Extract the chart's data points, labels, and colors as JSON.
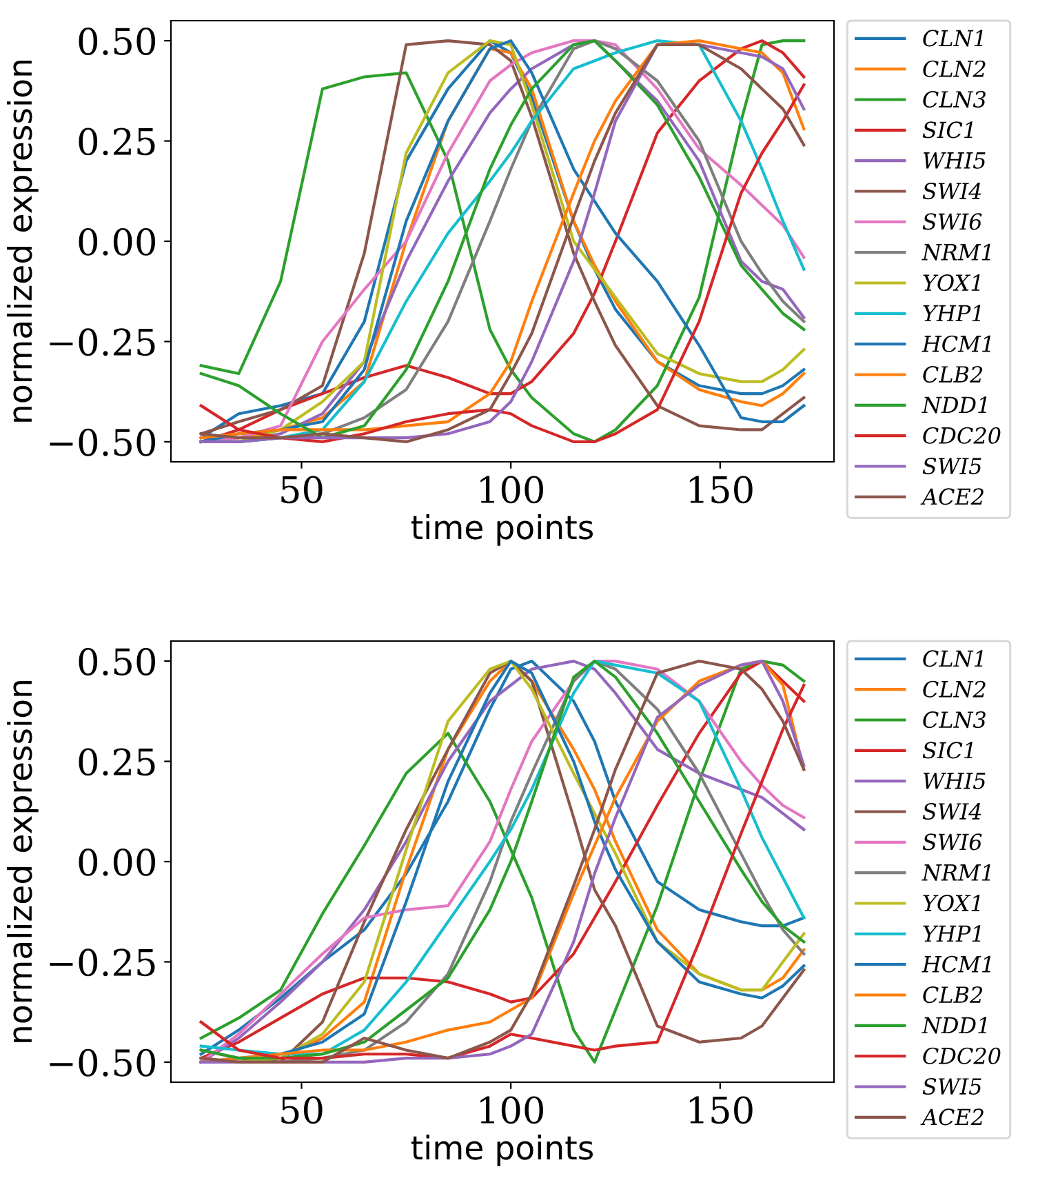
{
  "chart_data": [
    {
      "type": "line",
      "xlabel": "time points",
      "ylabel": "normalized expression",
      "legend": "right",
      "grid": false,
      "line_style": "solid",
      "xlim": [
        18.8,
        177.2
      ],
      "ylim": [
        -0.55,
        0.55
      ],
      "xticks": [
        50,
        100,
        150
      ],
      "yticks": [
        {
          "value": 0.5,
          "label": "0.50"
        },
        {
          "value": 0.25,
          "label": "0.25"
        },
        {
          "value": 0,
          "label": "0.00"
        },
        {
          "value": -0.25,
          "label": "−0.25"
        },
        {
          "value": -0.5,
          "label": "−0.50"
        }
      ],
      "x": [
        26,
        35,
        45,
        55,
        65,
        75,
        85,
        95,
        100,
        105,
        115,
        120,
        125,
        135,
        145,
        155,
        160,
        165,
        170
      ],
      "series": [
        {
          "name": "CLN1",
          "color": "#1f77b4",
          "values": [
            -0.49,
            -0.43,
            -0.41,
            -0.38,
            -0.2,
            0.2,
            0.38,
            0.5,
            0.47,
            0.36,
            0.05,
            -0.07,
            -0.17,
            -0.3,
            -0.36,
            -0.38,
            -0.38,
            -0.36,
            -0.32
          ]
        },
        {
          "name": "CLN2",
          "color": "#ff7f0e",
          "values": [
            -0.5,
            -0.49,
            -0.47,
            -0.44,
            -0.35,
            0.0,
            0.3,
            0.48,
            0.47,
            0.38,
            0.05,
            -0.06,
            -0.15,
            -0.3,
            -0.37,
            -0.4,
            -0.41,
            -0.38,
            -0.33
          ]
        },
        {
          "name": "CLN3",
          "color": "#2ca02c",
          "values": [
            -0.31,
            -0.33,
            -0.1,
            0.38,
            0.41,
            0.42,
            0.2,
            -0.22,
            -0.32,
            -0.39,
            -0.48,
            -0.5,
            -0.47,
            -0.36,
            -0.14,
            0.3,
            0.49,
            0.5,
            0.5
          ]
        },
        {
          "name": "SIC1",
          "color": "#d62728",
          "values": [
            -0.5,
            -0.47,
            -0.42,
            -0.38,
            -0.34,
            -0.31,
            -0.34,
            -0.38,
            -0.38,
            -0.35,
            -0.23,
            -0.13,
            0.0,
            0.27,
            0.4,
            0.48,
            0.5,
            0.47,
            0.41
          ]
        },
        {
          "name": "WHI5",
          "color": "#9467bd",
          "values": [
            -0.5,
            -0.5,
            -0.48,
            -0.43,
            -0.3,
            -0.05,
            0.15,
            0.32,
            0.38,
            0.43,
            0.49,
            0.5,
            0.45,
            0.35,
            0.2,
            -0.05,
            -0.1,
            -0.12,
            -0.19
          ]
        },
        {
          "name": "SWI4",
          "color": "#8c564b",
          "values": [
            -0.48,
            -0.45,
            -0.42,
            -0.36,
            -0.03,
            0.49,
            0.5,
            0.49,
            0.45,
            0.31,
            -0.03,
            -0.15,
            -0.26,
            -0.41,
            -0.46,
            -0.47,
            -0.47,
            -0.43,
            -0.39
          ]
        },
        {
          "name": "SWI6",
          "color": "#e377c2",
          "values": [
            -0.5,
            -0.49,
            -0.46,
            -0.25,
            -0.12,
            0.0,
            0.22,
            0.4,
            0.44,
            0.47,
            0.5,
            0.5,
            0.49,
            0.38,
            0.23,
            0.14,
            0.09,
            0.04,
            -0.04
          ]
        },
        {
          "name": "NRM1",
          "color": "#7f7f7f",
          "values": [
            -0.5,
            -0.5,
            -0.49,
            -0.48,
            -0.44,
            -0.37,
            -0.2,
            0.05,
            0.18,
            0.3,
            0.48,
            0.5,
            0.48,
            0.4,
            0.25,
            0.0,
            -0.08,
            -0.15,
            -0.2
          ]
        },
        {
          "name": "YOX1",
          "color": "#bcbd22",
          "values": [
            -0.5,
            -0.5,
            -0.47,
            -0.4,
            -0.3,
            0.22,
            0.42,
            0.5,
            0.49,
            0.34,
            0.0,
            -0.07,
            -0.14,
            -0.28,
            -0.33,
            -0.35,
            -0.35,
            -0.32,
            -0.27
          ]
        },
        {
          "name": "YHP1",
          "color": "#17becf",
          "values": [
            -0.5,
            -0.5,
            -0.49,
            -0.47,
            -0.35,
            -0.15,
            0.02,
            0.15,
            0.22,
            0.3,
            0.43,
            0.45,
            0.47,
            0.5,
            0.49,
            0.3,
            0.18,
            0.05,
            -0.07
          ]
        },
        {
          "name": "HCM1",
          "color": "#1f77b4",
          "values": [
            -0.5,
            -0.48,
            -0.47,
            -0.45,
            -0.32,
            0.05,
            0.3,
            0.48,
            0.5,
            0.42,
            0.18,
            0.1,
            0.02,
            -0.1,
            -0.26,
            -0.44,
            -0.45,
            -0.45,
            -0.41
          ]
        },
        {
          "name": "CLB2",
          "color": "#ff7f0e",
          "values": [
            -0.49,
            -0.48,
            -0.47,
            -0.47,
            -0.47,
            -0.46,
            -0.45,
            -0.38,
            -0.3,
            -0.15,
            0.12,
            0.25,
            0.35,
            0.49,
            0.5,
            0.48,
            0.47,
            0.42,
            0.28
          ]
        },
        {
          "name": "NDD1",
          "color": "#2ca02c",
          "values": [
            -0.33,
            -0.36,
            -0.43,
            -0.49,
            -0.46,
            -0.32,
            -0.1,
            0.18,
            0.29,
            0.38,
            0.49,
            0.5,
            0.45,
            0.34,
            0.16,
            -0.06,
            -0.12,
            -0.18,
            -0.22
          ]
        },
        {
          "name": "CDC20",
          "color": "#d62728",
          "values": [
            -0.41,
            -0.47,
            -0.49,
            -0.5,
            -0.48,
            -0.45,
            -0.43,
            -0.42,
            -0.43,
            -0.46,
            -0.5,
            -0.5,
            -0.48,
            -0.42,
            -0.2,
            0.12,
            0.22,
            0.3,
            0.39
          ]
        },
        {
          "name": "SWI5",
          "color": "#9467bd",
          "values": [
            -0.5,
            -0.5,
            -0.49,
            -0.49,
            -0.49,
            -0.49,
            -0.48,
            -0.45,
            -0.4,
            -0.3,
            -0.05,
            0.12,
            0.3,
            0.49,
            0.49,
            0.47,
            0.46,
            0.43,
            0.33
          ]
        },
        {
          "name": "ACE2",
          "color": "#8c564b",
          "values": [
            -0.48,
            -0.49,
            -0.49,
            -0.48,
            -0.49,
            -0.5,
            -0.47,
            -0.42,
            -0.33,
            -0.23,
            0.06,
            0.2,
            0.32,
            0.49,
            0.49,
            0.43,
            0.38,
            0.33,
            0.24
          ]
        }
      ]
    },
    {
      "type": "line",
      "xlabel": "time points",
      "ylabel": "normalized expression",
      "legend": "right",
      "grid": false,
      "line_style": "solid",
      "xlim": [
        18.8,
        177.2
      ],
      "ylim": [
        -0.55,
        0.55
      ],
      "xticks": [
        50,
        100,
        150
      ],
      "yticks": [
        {
          "value": 0.5,
          "label": "0.50"
        },
        {
          "value": 0.25,
          "label": "0.25"
        },
        {
          "value": 0,
          "label": "0.00"
        },
        {
          "value": -0.25,
          "label": "−0.25"
        },
        {
          "value": -0.5,
          "label": "−0.50"
        }
      ],
      "x": [
        26,
        35,
        45,
        55,
        65,
        75,
        85,
        95,
        100,
        105,
        115,
        120,
        125,
        135,
        145,
        155,
        160,
        165,
        170
      ],
      "series": [
        {
          "name": "CLN1",
          "color": "#1f77b4",
          "values": [
            -0.48,
            -0.42,
            -0.34,
            -0.25,
            -0.17,
            -0.03,
            0.15,
            0.38,
            0.48,
            0.5,
            0.4,
            0.3,
            0.15,
            -0.05,
            -0.12,
            -0.15,
            -0.16,
            -0.16,
            -0.14
          ]
        },
        {
          "name": "CLN2",
          "color": "#ff7f0e",
          "values": [
            -0.49,
            -0.5,
            -0.49,
            -0.44,
            -0.35,
            -0.02,
            0.28,
            0.45,
            0.5,
            0.45,
            0.28,
            0.18,
            0.05,
            -0.17,
            -0.28,
            -0.32,
            -0.32,
            -0.29,
            -0.22
          ]
        },
        {
          "name": "CLN3",
          "color": "#2ca02c",
          "values": [
            -0.44,
            -0.39,
            -0.32,
            -0.13,
            0.04,
            0.22,
            0.32,
            0.15,
            0.03,
            -0.09,
            -0.42,
            -0.5,
            -0.37,
            -0.11,
            0.2,
            0.48,
            0.5,
            0.49,
            0.45
          ]
        },
        {
          "name": "SIC1",
          "color": "#d62728",
          "values": [
            -0.49,
            -0.45,
            -0.39,
            -0.33,
            -0.29,
            -0.29,
            -0.3,
            -0.33,
            -0.35,
            -0.34,
            -0.23,
            -0.14,
            -0.05,
            0.14,
            0.32,
            0.47,
            0.5,
            0.45,
            0.4
          ]
        },
        {
          "name": "WHI5",
          "color": "#9467bd",
          "values": [
            -0.5,
            -0.44,
            -0.35,
            -0.25,
            -0.12,
            0.05,
            0.25,
            0.4,
            0.44,
            0.48,
            0.5,
            0.48,
            0.42,
            0.28,
            0.22,
            0.18,
            0.16,
            0.12,
            0.08
          ]
        },
        {
          "name": "SWI4",
          "color": "#8c564b",
          "values": [
            -0.47,
            -0.49,
            -0.5,
            -0.4,
            -0.15,
            0.08,
            0.28,
            0.47,
            0.5,
            0.45,
            0.11,
            -0.07,
            -0.16,
            -0.41,
            -0.45,
            -0.44,
            -0.41,
            -0.34,
            -0.27
          ]
        },
        {
          "name": "SWI6",
          "color": "#e377c2",
          "values": [
            -0.5,
            -0.43,
            -0.33,
            -0.23,
            -0.14,
            -0.12,
            -0.11,
            0.05,
            0.18,
            0.3,
            0.45,
            0.5,
            0.5,
            0.48,
            0.4,
            0.25,
            0.19,
            0.14,
            0.11
          ]
        },
        {
          "name": "NRM1",
          "color": "#7f7f7f",
          "values": [
            -0.5,
            -0.5,
            -0.5,
            -0.49,
            -0.47,
            -0.4,
            -0.28,
            -0.05,
            0.1,
            0.22,
            0.45,
            0.5,
            0.48,
            0.38,
            0.22,
            0.02,
            -0.08,
            -0.17,
            -0.23
          ]
        },
        {
          "name": "YOX1",
          "color": "#bcbd22",
          "values": [
            -0.5,
            -0.5,
            -0.49,
            -0.43,
            -0.3,
            0.03,
            0.35,
            0.48,
            0.5,
            0.43,
            0.22,
            0.12,
            0.02,
            -0.2,
            -0.28,
            -0.32,
            -0.32,
            -0.25,
            -0.18
          ]
        },
        {
          "name": "YHP1",
          "color": "#17becf",
          "values": [
            -0.46,
            -0.47,
            -0.48,
            -0.48,
            -0.42,
            -0.3,
            -0.15,
            0.0,
            0.08,
            0.18,
            0.42,
            0.5,
            0.49,
            0.47,
            0.4,
            0.18,
            0.06,
            -0.04,
            -0.14
          ]
        },
        {
          "name": "HCM1",
          "color": "#1f77b4",
          "values": [
            -0.5,
            -0.49,
            -0.48,
            -0.45,
            -0.38,
            -0.1,
            0.2,
            0.42,
            0.5,
            0.47,
            0.25,
            0.1,
            -0.02,
            -0.2,
            -0.3,
            -0.33,
            -0.34,
            -0.31,
            -0.26
          ]
        },
        {
          "name": "CLB2",
          "color": "#ff7f0e",
          "values": [
            -0.5,
            -0.49,
            -0.48,
            -0.47,
            -0.47,
            -0.45,
            -0.42,
            -0.4,
            -0.37,
            -0.34,
            -0.08,
            0.04,
            0.16,
            0.35,
            0.45,
            0.49,
            0.5,
            0.44,
            0.23
          ]
        },
        {
          "name": "NDD1",
          "color": "#2ca02c",
          "values": [
            -0.47,
            -0.49,
            -0.49,
            -0.48,
            -0.45,
            -0.37,
            -0.29,
            -0.12,
            0.0,
            0.15,
            0.46,
            0.5,
            0.46,
            0.32,
            0.15,
            -0.02,
            -0.1,
            -0.16,
            -0.2
          ]
        },
        {
          "name": "CDC20",
          "color": "#d62728",
          "values": [
            -0.4,
            -0.47,
            -0.49,
            -0.49,
            -0.48,
            -0.48,
            -0.49,
            -0.46,
            -0.43,
            -0.44,
            -0.46,
            -0.47,
            -0.46,
            -0.45,
            -0.2,
            0.07,
            0.2,
            0.33,
            0.44
          ]
        },
        {
          "name": "SWI5",
          "color": "#9467bd",
          "values": [
            -0.5,
            -0.5,
            -0.5,
            -0.5,
            -0.5,
            -0.49,
            -0.49,
            -0.48,
            -0.46,
            -0.43,
            -0.2,
            -0.03,
            0.11,
            0.36,
            0.44,
            0.49,
            0.5,
            0.4,
            0.24
          ]
        },
        {
          "name": "ACE2",
          "color": "#8c564b",
          "values": [
            -0.49,
            -0.5,
            -0.5,
            -0.5,
            -0.44,
            -0.47,
            -0.49,
            -0.45,
            -0.42,
            -0.33,
            -0.06,
            0.08,
            0.23,
            0.47,
            0.5,
            0.48,
            0.43,
            0.35,
            0.23
          ]
        }
      ]
    }
  ]
}
